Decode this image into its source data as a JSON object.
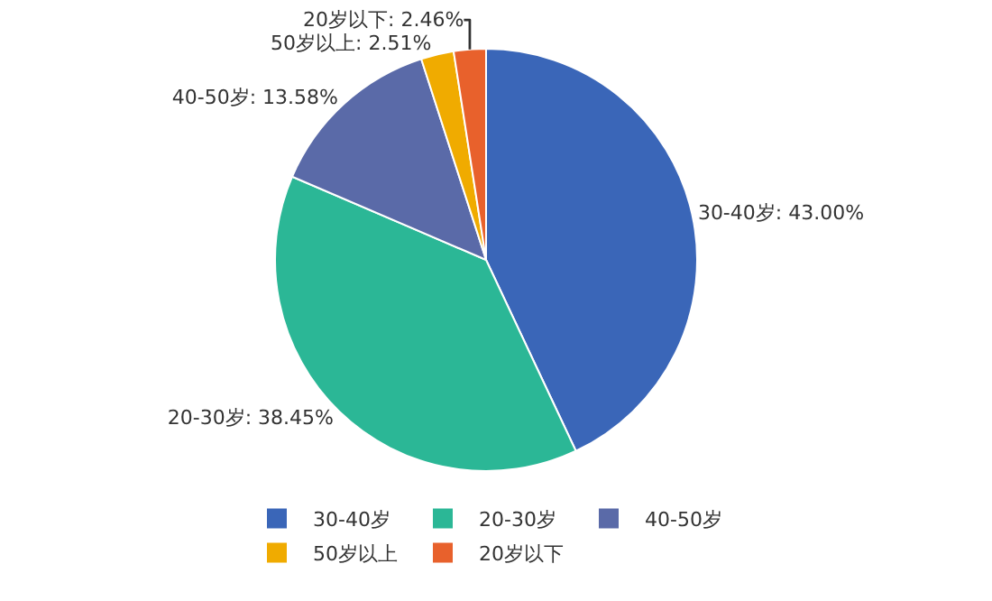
{
  "chart_data": {
    "type": "pie",
    "categories": [
      "30-40岁",
      "20-30岁",
      "40-50岁",
      "50岁以上",
      "20岁以下"
    ],
    "values": [
      43.0,
      38.45,
      13.58,
      2.51,
      2.46
    ],
    "colors": [
      "#3a66b8",
      "#2bb796",
      "#5a6aa8",
      "#f0ab00",
      "#e8612c"
    ],
    "value_labels": [
      "30-40岁: 43.00%",
      "20-30岁: 38.45%",
      "40-50岁: 13.58%",
      "50岁以上: 2.51%",
      "20岁以下: 2.46%"
    ],
    "legend": "bottom"
  }
}
